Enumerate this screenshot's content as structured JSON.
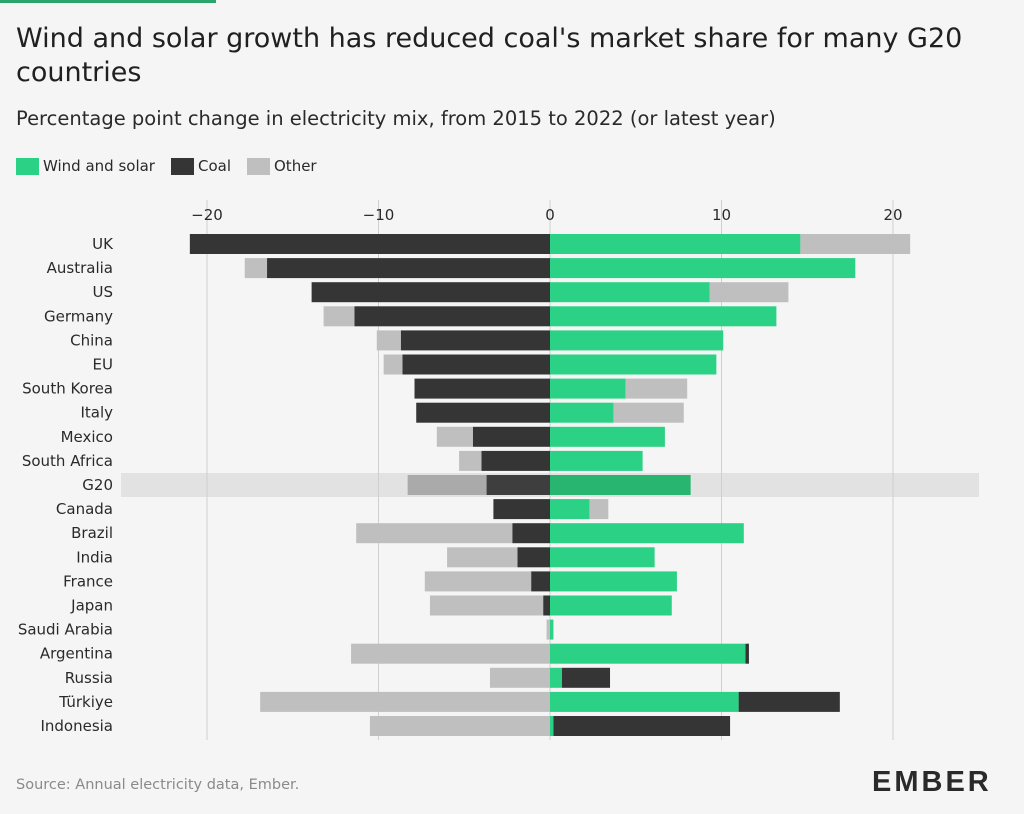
{
  "header": {
    "title": "Wind and solar growth has reduced coal's market share for many G20 countries",
    "subtitle": "Percentage point change in electricity mix, from 2015 to 2022 (or latest year)"
  },
  "legend": [
    {
      "label": "Wind and solar",
      "color": "#2bd184"
    },
    {
      "label": "Coal",
      "color": "#353535"
    },
    {
      "label": "Other",
      "color": "#bfbfbf"
    }
  ],
  "footer": {
    "source": "Source: Annual electricity data, Ember.",
    "logo_text": "EMBER"
  },
  "colors": {
    "wind_solar": "#2bd184",
    "coal": "#353535",
    "other": "#bfbfbf",
    "highlight_band": "#e2e2e2",
    "hl_wind_solar": "#27b56f",
    "hl_coal": "#3e3e3e",
    "hl_other": "#aaaaaa",
    "grid": "#cfcfcf"
  },
  "chart_data": {
    "type": "bar",
    "orientation": "horizontal",
    "stacked": "diverging",
    "x_ticks": [
      -20,
      -10,
      0,
      10,
      20
    ],
    "x_tick_labels": [
      "−20",
      "−10",
      "0",
      "10",
      "20"
    ],
    "xlim": [
      -25,
      25
    ],
    "grid": true,
    "legend_position": "top-left",
    "highlight_category": "G20",
    "categories": [
      "UK",
      "Australia",
      "US",
      "Germany",
      "China",
      "EU",
      "South Korea",
      "Italy",
      "Mexico",
      "South Africa",
      "G20",
      "Canada",
      "Brazil",
      "India",
      "France",
      "Japan",
      "Saudi Arabia",
      "Argentina",
      "Russia",
      "Türkiye",
      "Indonesia"
    ],
    "series": [
      {
        "name": "Wind and solar",
        "values": [
          14.6,
          17.8,
          9.3,
          13.2,
          10.1,
          9.7,
          4.4,
          3.7,
          6.7,
          5.4,
          8.2,
          2.3,
          11.3,
          6.1,
          7.4,
          7.1,
          0.2,
          11.4,
          0.7,
          11.0,
          0.2
        ]
      },
      {
        "name": "Coal",
        "values": [
          -21.0,
          -16.5,
          -13.9,
          -11.4,
          -8.7,
          -8.6,
          -7.9,
          -7.8,
          -4.5,
          -4.0,
          -3.7,
          -3.3,
          -2.2,
          -1.9,
          -1.1,
          -0.4,
          0,
          0.2,
          2.8,
          5.9,
          10.3
        ]
      },
      {
        "name": "Other",
        "values": [
          6.4,
          -1.3,
          4.6,
          -1.8,
          -1.4,
          -1.1,
          3.6,
          4.1,
          -2.1,
          -1.3,
          -4.6,
          1.1,
          -9.1,
          -4.1,
          -6.2,
          -6.6,
          -0.2,
          -11.6,
          -3.5,
          -16.9,
          -10.5
        ]
      }
    ]
  }
}
